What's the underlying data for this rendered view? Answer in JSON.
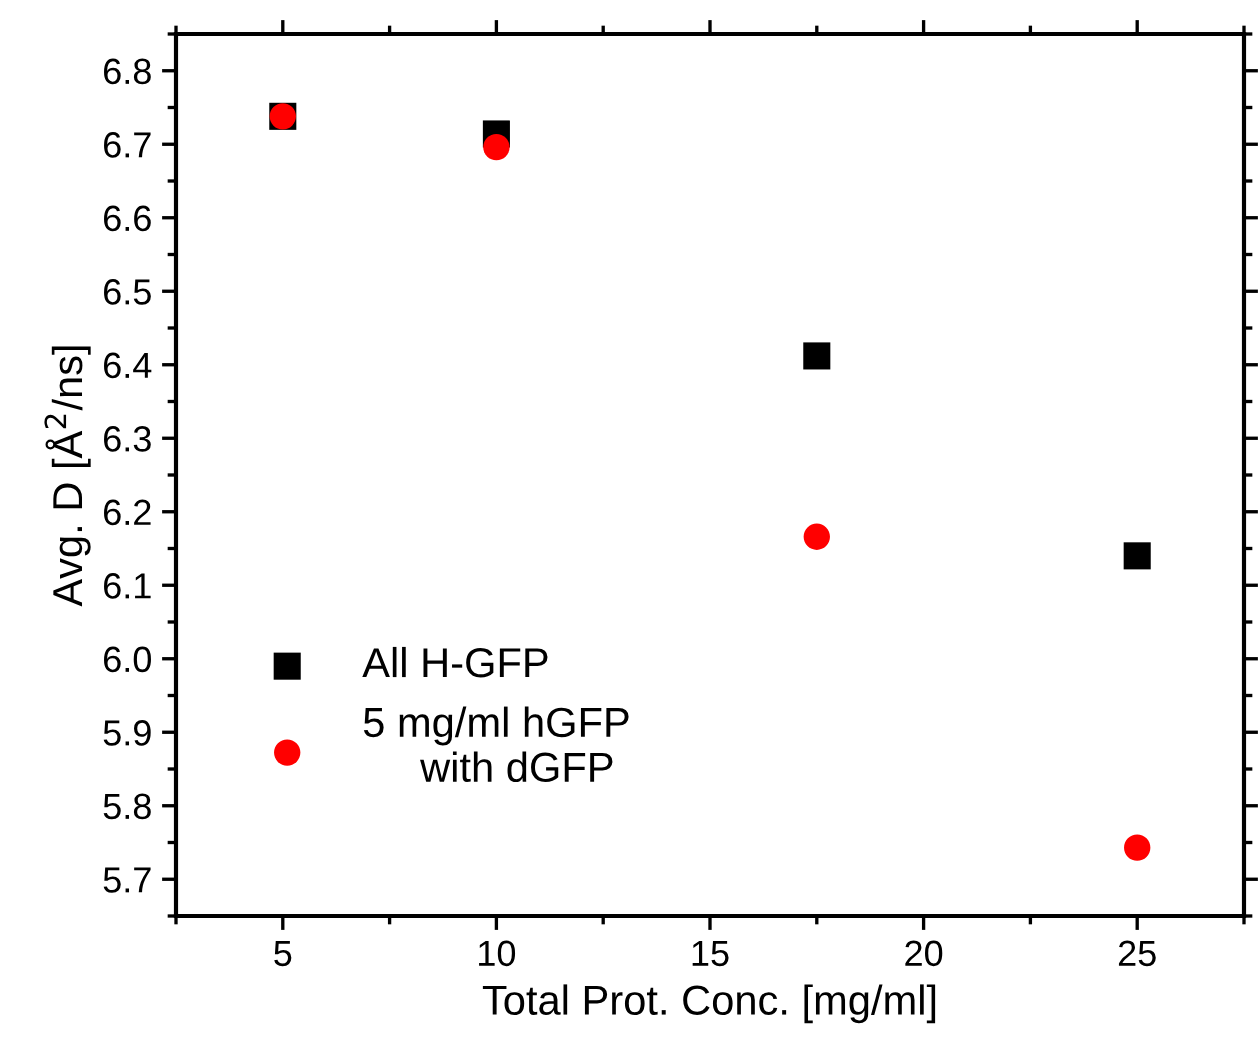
{
  "chart_data": {
    "type": "scatter",
    "xlabel": "Total Prot. Conc. [mg/ml]",
    "ylabel": "Avg. D [Å$^{2}$/ns]",
    "x": [
      5,
      10,
      17.5,
      25
    ],
    "series": [
      {
        "name": "All H-GFP",
        "color": "#000000",
        "marker": "square",
        "values": [
          6.738,
          6.714,
          6.412,
          6.14
        ]
      },
      {
        "name": "5 mg/ml hGFP\n     with dGFP",
        "color": "#ff0000",
        "marker": "circle",
        "values": [
          6.738,
          6.696,
          6.166,
          5.743
        ]
      }
    ],
    "xlim": [
      2.5,
      27.5
    ],
    "xticks": [
      5,
      10,
      15,
      20,
      25
    ],
    "ylim": [
      5.65,
      6.85
    ],
    "yticks": [
      {
        "value": 5.7,
        "label": "5.7"
      },
      {
        "value": 5.8,
        "label": "5.8"
      },
      {
        "value": 5.9,
        "label": "5.9"
      },
      {
        "value": 6.0,
        "label": "6.0"
      },
      {
        "value": 6.1,
        "label": "6.1"
      },
      {
        "value": 6.2,
        "label": "6.2"
      },
      {
        "value": 6.3,
        "label": "6.3"
      },
      {
        "value": 6.4,
        "label": "6.4"
      },
      {
        "value": 6.5,
        "label": "6.5"
      },
      {
        "value": 6.6,
        "label": "6.6"
      },
      {
        "value": 6.7,
        "label": "6.7"
      },
      {
        "value": 6.8,
        "label": "6.8"
      }
    ],
    "grid": false,
    "legend": "bottom left"
  }
}
